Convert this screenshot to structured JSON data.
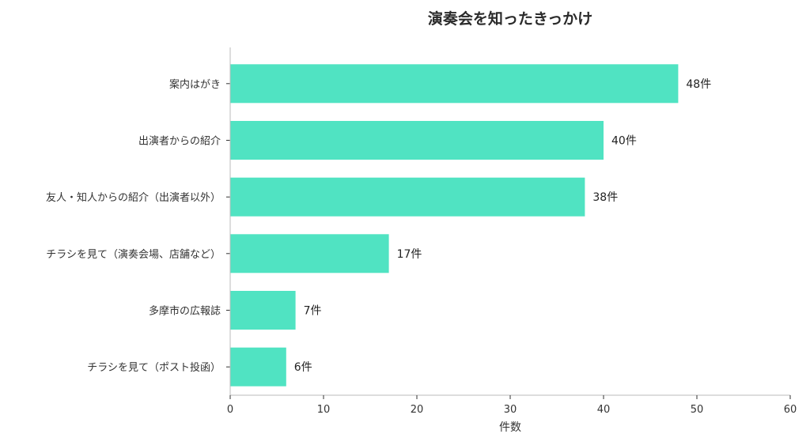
{
  "chart_data": {
    "type": "bar",
    "orientation": "horizontal",
    "title": "演奏会を知ったきっかけ",
    "xlabel": "件数",
    "ylabel": "",
    "categories": [
      "案内はがき",
      "出演者からの紹介",
      "友人・知人からの紹介（出演者以外）",
      "チラシを見て（演奏会場、店舗など）",
      "多摩市の広報誌",
      "チラシを見て（ポスト投函）"
    ],
    "values": [
      48,
      40,
      38,
      17,
      7,
      6
    ],
    "value_labels": [
      "48件",
      "40件",
      "38件",
      "17件",
      "7件",
      "6件"
    ],
    "xlim": [
      0,
      60
    ],
    "xticks": [
      0,
      10,
      20,
      30,
      40,
      50,
      60
    ],
    "bar_color": "#50e3c2",
    "grid": false,
    "legend": "none"
  }
}
